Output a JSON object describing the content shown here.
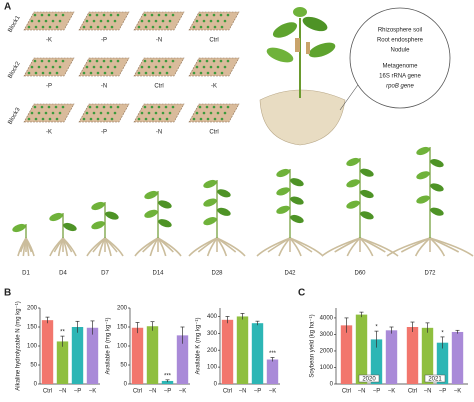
{
  "panel_a": {
    "label": "A",
    "blocks": [
      {
        "name": "Block1",
        "plots": [
          "-K",
          "-P",
          "-N",
          "Ctrl"
        ]
      },
      {
        "name": "Block2",
        "plots": [
          "-P",
          "-N",
          "Ctrl",
          "-K"
        ]
      },
      {
        "name": "Block3",
        "plots": [
          "-K",
          "-P",
          "-N",
          "Ctrl"
        ]
      }
    ],
    "callout": [
      "Rhizosphere soil",
      "Root endosphere",
      "Nodule",
      "Metagenome",
      "16S rRNA gene",
      "rpoB gene"
    ],
    "stages": [
      "D1",
      "D4",
      "D7",
      "D14",
      "D28",
      "D42",
      "D60",
      "D72"
    ]
  },
  "panel_b_label": "B",
  "panel_c_label": "C",
  "chart_data": [
    {
      "type": "bar",
      "ylabel": "Alkaline hydrolyzable N (mg kg⁻¹)",
      "categories": [
        "Ctrl",
        "−N",
        "−P",
        "−K"
      ],
      "values": [
        168,
        112,
        150,
        148
      ],
      "errors": [
        8,
        14,
        15,
        18
      ],
      "significance": [
        null,
        "**",
        null,
        null
      ],
      "colors": [
        "#f2766d",
        "#8fbf3f",
        "#2db6b5",
        "#a98ad8"
      ],
      "ylim": [
        0,
        200
      ],
      "yticks": [
        0,
        50,
        100,
        150,
        200
      ]
    },
    {
      "type": "bar",
      "ylabel": "Available P (mg kg⁻¹)",
      "categories": [
        "Ctrl",
        "−N",
        "−P",
        "−K"
      ],
      "values": [
        148,
        152,
        8,
        128
      ],
      "errors": [
        14,
        12,
        3,
        22
      ],
      "significance": [
        null,
        null,
        "***",
        null
      ],
      "colors": [
        "#f2766d",
        "#8fbf3f",
        "#2db6b5",
        "#a98ad8"
      ],
      "ylim": [
        0,
        200
      ],
      "yticks": [
        0,
        50,
        100,
        150,
        200
      ]
    },
    {
      "type": "bar",
      "ylabel": "Available K (mg kg⁻¹)",
      "categories": [
        "Ctrl",
        "−N",
        "−P",
        "−K"
      ],
      "values": [
        380,
        400,
        360,
        145
      ],
      "errors": [
        20,
        18,
        12,
        12
      ],
      "significance": [
        null,
        null,
        null,
        "***"
      ],
      "colors": [
        "#f2766d",
        "#8fbf3f",
        "#2db6b5",
        "#a98ad8"
      ],
      "ylim": [
        0,
        450
      ],
      "yticks": [
        0,
        100,
        200,
        300,
        400
      ]
    },
    {
      "type": "grouped_bar",
      "ylabel": "Soybean yield (kg ha⁻¹)",
      "categories": [
        "Ctrl",
        "−N",
        "−P",
        "−K"
      ],
      "colors": [
        "#f2766d",
        "#8fbf3f",
        "#2db6b5",
        "#a98ad8"
      ],
      "series": [
        {
          "name": "2020",
          "values": [
            3550,
            4200,
            2700,
            3250
          ],
          "errors": [
            450,
            150,
            500,
            200
          ],
          "significance": [
            null,
            null,
            "*",
            null
          ]
        },
        {
          "name": "2021",
          "values": [
            3450,
            3400,
            2500,
            3150
          ],
          "errors": [
            300,
            300,
            350,
            100
          ],
          "significance": [
            null,
            null,
            "*",
            null
          ]
        }
      ],
      "ylim": [
        0,
        4600
      ],
      "yticks": [
        0,
        1000,
        2000,
        3000,
        4000
      ]
    }
  ]
}
